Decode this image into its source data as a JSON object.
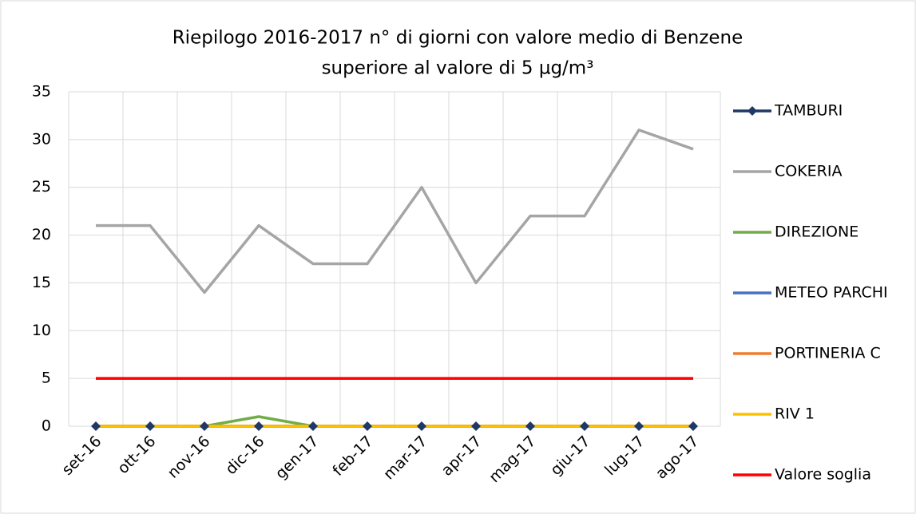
{
  "chart_data": {
    "type": "line",
    "title": [
      "Riepilogo 2016-2017 n° di giorni con valore medio di Benzene",
      "superiore al valore di 5 µg/m³"
    ],
    "categories": [
      "set-16",
      "ott-16",
      "nov-16",
      "dic-16",
      "gen-17",
      "feb-17",
      "mar-17",
      "apr-17",
      "mag-17",
      "giu-17",
      "lug-17",
      "ago-17"
    ],
    "series": [
      {
        "name": "TAMBURI",
        "color": "#1f3864",
        "marker": "diamond",
        "values": [
          0,
          0,
          0,
          0,
          0,
          0,
          0,
          0,
          0,
          0,
          0,
          0
        ]
      },
      {
        "name": "COKERIA",
        "color": "#a5a5a5",
        "values": [
          21,
          21,
          14,
          21,
          17,
          17,
          25,
          15,
          22,
          22,
          31,
          29
        ]
      },
      {
        "name": "DIREZIONE",
        "color": "#70ad47",
        "values": [
          0,
          0,
          0,
          1,
          0,
          0,
          0,
          0,
          0,
          0,
          0,
          0
        ]
      },
      {
        "name": "METEO PARCHI",
        "color": "#4472c4",
        "values": [
          0,
          0,
          0,
          0,
          0,
          0,
          0,
          0,
          0,
          0,
          0,
          0
        ]
      },
      {
        "name": "PORTINERIA C",
        "color": "#ed7d31",
        "values": [
          0,
          0,
          0,
          0,
          0,
          0,
          0,
          0,
          0,
          0,
          0,
          0
        ]
      },
      {
        "name": "RIV 1",
        "color": "#ffc000",
        "values": [
          0,
          0,
          0,
          0,
          0,
          0,
          0,
          0,
          0,
          0,
          0,
          0
        ]
      },
      {
        "name": "Valore soglia",
        "color": "#ff0000",
        "values": [
          5,
          5,
          5,
          5,
          5,
          5,
          5,
          5,
          5,
          5,
          5,
          5
        ]
      }
    ],
    "ylim": [
      0,
      35
    ],
    "yticks": [
      0,
      5,
      10,
      15,
      20,
      25,
      30,
      35
    ],
    "grid": true,
    "legend": "right"
  }
}
